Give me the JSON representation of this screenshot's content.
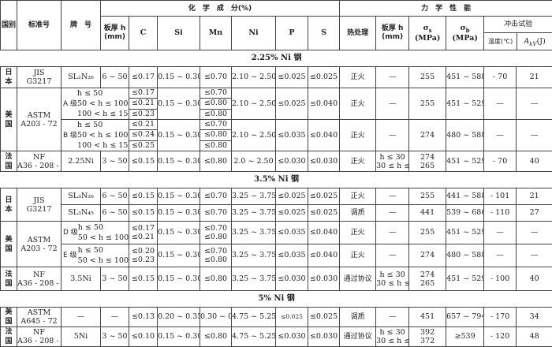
{
  "header": {
    "country": "国别",
    "standard": "标准号",
    "grade": "牌　号",
    "chem": "化　学　成　分(%)",
    "thickness": "板厚 h",
    "thickness_unit": "(mm)",
    "C": "C",
    "Si": "Si",
    "Mn": "Mn",
    "Ni": "Ni",
    "P": "P",
    "S": "S",
    "mech": "力　学　性　能",
    "heat": "热处理",
    "thickness2": "板厚 h",
    "thickness2_unit": "(mm)",
    "sigma": "σ",
    "sigma_s_sub": "s",
    "sigma_b_sub": "b",
    "mpa": "(MPa)",
    "impact": "冲击试验",
    "temp": "温度(℃)",
    "akv": "A",
    "akv_sub": "kV",
    "akv_unit": "(J)"
  },
  "s1": {
    "title": "2.25% Ni 钢",
    "jp": {
      "country": "日本",
      "std1": "JIS",
      "std2": "G3217",
      "grade": "SL₂N₂₆",
      "thk": "6 ~ 50",
      "C": "≤0.17",
      "Si": "0.15 ~ 0.30",
      "Mn": "≤0.70",
      "Ni": "2.10 ~ 2.50",
      "P": "≤0.025",
      "S": "≤0.025",
      "heat": "正火",
      "thk2": "—",
      "ss": "255",
      "sb": "451 ~ 588",
      "temp": "- 70",
      "akv": "21"
    },
    "us": {
      "country": "美国",
      "std1": "ASTM",
      "std2": "A203 - 72",
      "A": {
        "label": "A 级",
        "h": [
          "h ≤ 50",
          "50 < h ≤ 100",
          "100 < h ≤ 150"
        ],
        "C": [
          "≤0.17",
          "≤0.21",
          "≤0.23"
        ],
        "Si": "0.15 ~ 0.30",
        "Mn": [
          "≤0.70",
          "≤0.80",
          "≤0.80"
        ],
        "Ni": "2.10 ~ 2.50",
        "P": "≤0.025",
        "S": "≤0.040",
        "heat": "正火",
        "thk2": "—",
        "ss": "255",
        "sb": "451 ~ 529",
        "temp": "—",
        "akv": "—"
      },
      "B": {
        "label": "B 级",
        "h": [
          "h ≤ 50",
          "50 < h ≤ 100",
          "100 < h ≤ 150"
        ],
        "C": [
          "≤0.21",
          "≤0.24",
          "≤0.25"
        ],
        "Si": "0.15 ~ 0.30",
        "Mn": [
          "≤0.70",
          "≤0.80",
          "≤0.80"
        ],
        "Ni": "2.10 ~ 2.50",
        "P": "≤0.035",
        "S": "≤0.040",
        "heat": "正火",
        "thk2": "—",
        "ss": "274",
        "sb": "480 ~ 588",
        "temp": "—",
        "akv": "—"
      }
    },
    "fr": {
      "country": "法国",
      "std1": "NF",
      "std2": "A36 - 208 - 66",
      "grade": "2.25Ni",
      "thk": "3 ~ 50",
      "C": "≤0.15",
      "Si": "0.15 ~ 0.30",
      "Mn": "≤0.80",
      "Ni": "2.0 ~ 2.50",
      "P": "≤0.030",
      "S": "≤0.030",
      "heat": "正火",
      "thk2": [
        "h ≤ 30",
        "30 ≤ h ≤ 50"
      ],
      "ss": [
        "274",
        "265"
      ],
      "sb": "451 ~ 529",
      "temp": "- 70",
      "akv": "40"
    }
  },
  "s2": {
    "title": "3.5% Ni 钢",
    "jp": {
      "country": "日本",
      "std1": "JIS",
      "std2": "G3217",
      "r1": {
        "grade": "SL₃N₂₆",
        "thk": "6 ~ 50",
        "C": "≤0.15",
        "Si": "0.15 ~ 0.30",
        "Mn": "≤0.70",
        "Ni": "3.25 ~ 3.75",
        "P": "≤0.025",
        "S": "≤0.025",
        "heat": "正火",
        "thk2": "—",
        "ss": "255",
        "sb": "441 ~ 588",
        "temp": "- 101",
        "akv": "21"
      },
      "r2": {
        "grade": "SL₃N₄₅",
        "thk": "6 ~ 50",
        "C": "≤0.15",
        "Si": "0.15 ~ 0.30",
        "Mn": "≤0.70",
        "Ni": "3.25 ~ 3.75",
        "P": "≤0.025",
        "S": "≤0.025",
        "heat": "调质",
        "thk2": "—",
        "ss": "441",
        "sb": "539 ~ 686",
        "temp": "- 110",
        "akv": "27"
      }
    },
    "us": {
      "country": "美国",
      "std1": "ASTM",
      "std2": "A203 - 72",
      "D": {
        "label": "D 级",
        "h": [
          "h ≤ 50",
          "50 < h ≤ 100"
        ],
        "C": [
          "≤0.17",
          "≤0.21"
        ],
        "Si": "0.15 ~ 0.30",
        "Mn": [
          "≤0.70",
          "≤0.80"
        ],
        "Ni": "3.25 ~ 3.75",
        "P": "≤0.035",
        "S": "≤0.040",
        "heat": "正火",
        "thk2": "—",
        "ss": "255",
        "sb": "451 ~ 529",
        "temp": "—",
        "akv": "—"
      },
      "E": {
        "label": "E 级",
        "h": [
          "h ≤ 50",
          "50 < h ≤ 100"
        ],
        "C": [
          "≤0.20",
          "≤0.23"
        ],
        "Si": "0.15 ~ 0.30",
        "Mn": [
          "≤0.70",
          "≤0.80"
        ],
        "Ni": "3.25 ~ 3.75",
        "P": "≤0.035",
        "S": "≤0.040",
        "heat": "正火",
        "thk2": "—",
        "ss": "274",
        "sb": "480 ~ 588",
        "temp": "—",
        "akv": "—"
      }
    },
    "fr": {
      "country": "法国",
      "std1": "NF",
      "std2": "A36 - 208 - 66",
      "grade": "3.5Ni",
      "thk": "3 ~ 50",
      "C": "≤0.15",
      "Si": "0.15 ~ 0.30",
      "Mn": "≤0.80",
      "Ni": "3.25 ~ 3.75",
      "P": "≤0.030",
      "S": "≤0.030",
      "heat": "通过协议",
      "thk2": [
        "h ≤ 30",
        "30 ≤ h ≤ 50"
      ],
      "ss": [
        "274",
        "265"
      ],
      "sb": "451 ~ 529",
      "temp": "- 100",
      "akv": "40"
    }
  },
  "s3": {
    "title": "5% Ni 钢",
    "us": {
      "country": "美国",
      "std1": "ASTM",
      "std2": "A645 - 72",
      "grade": "—",
      "thk": "—",
      "C": "≤0.13",
      "Si": "0.20 ~ 0.35",
      "Mn": "0.30 ~ 0.60",
      "Ni": "4.75 ~ 5.25",
      "P": "≤0.025",
      "S": "≤0.025",
      "heat": "调质",
      "thk2": "—",
      "ss": "451",
      "sb": "657 ~ 794",
      "temp": "- 170",
      "akv": "34"
    },
    "fr": {
      "country": "法国",
      "std1": "NF",
      "std2": "A36 - 208 - 66",
      "grade": "5Ni",
      "thk": "3 ~ 50",
      "C": "≤0.10",
      "Si": "0.15 ~ 0.30",
      "Mn": "≤0.80",
      "Ni": "4.75 ~ 5.25",
      "P": "≤0.030",
      "S": "≤0.030",
      "heat": "通过协议",
      "thk2": [
        "h ≤ 30",
        "30 ≤ h ≤ 50"
      ],
      "ss": [
        "392",
        "372"
      ],
      "sb": "≥539",
      "temp": "- 120",
      "akv": "48"
    }
  }
}
